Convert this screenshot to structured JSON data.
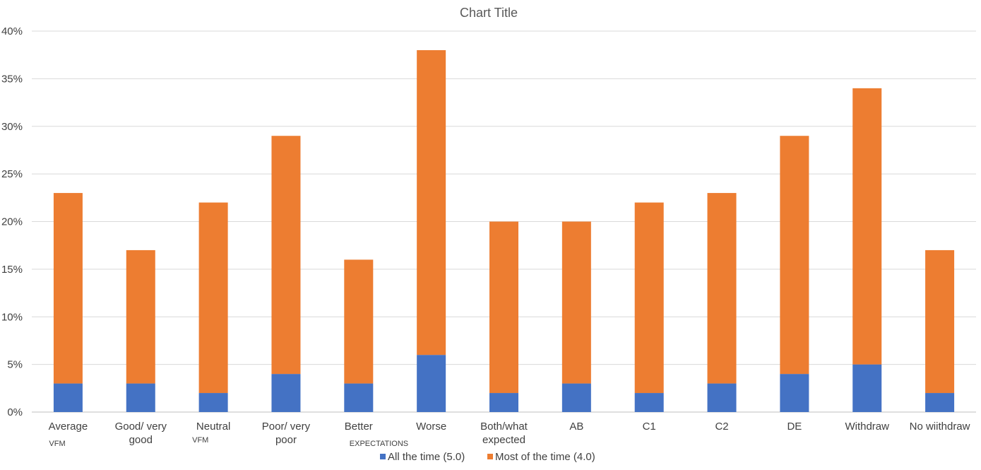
{
  "chart_data": {
    "type": "bar",
    "stacked": true,
    "title": "Chart Title",
    "xlabel": "",
    "ylabel": "",
    "ylim": [
      0,
      0.4
    ],
    "y_tick_step": 0.05,
    "y_ticks": [
      "0%",
      "5%",
      "10%",
      "15%",
      "20%",
      "25%",
      "30%",
      "35%",
      "40%"
    ],
    "grid": true,
    "legend_position": "bottom",
    "categories": [
      [
        "Average"
      ],
      [
        "Good/ very",
        "good"
      ],
      [
        "Neutral"
      ],
      [
        "Poor/ very",
        "poor"
      ],
      [
        "Better"
      ],
      [
        "Worse"
      ],
      [
        "Both/what",
        "expected"
      ],
      [
        "AB"
      ],
      [
        "C1"
      ],
      [
        "C2"
      ],
      [
        "DE"
      ],
      [
        "Withdraw"
      ],
      [
        "No wiithdraw"
      ]
    ],
    "group_labels": [
      {
        "text": "VFM",
        "category_index": 0
      },
      {
        "text": "VFM",
        "category_index": 2
      },
      {
        "text": "EXPECTATIONS",
        "category_index": 4
      }
    ],
    "series": [
      {
        "name": "All the time (5.0)",
        "color": "#4472c4",
        "values": [
          0.03,
          0.03,
          0.02,
          0.04,
          0.03,
          0.06,
          0.02,
          0.03,
          0.02,
          0.03,
          0.04,
          0.05,
          0.02
        ]
      },
      {
        "name": "Most of the time (4.0)",
        "color": "#ed7d31",
        "values": [
          0.2,
          0.14,
          0.2,
          0.25,
          0.13,
          0.32,
          0.18,
          0.17,
          0.2,
          0.2,
          0.25,
          0.29,
          0.15
        ]
      }
    ]
  }
}
